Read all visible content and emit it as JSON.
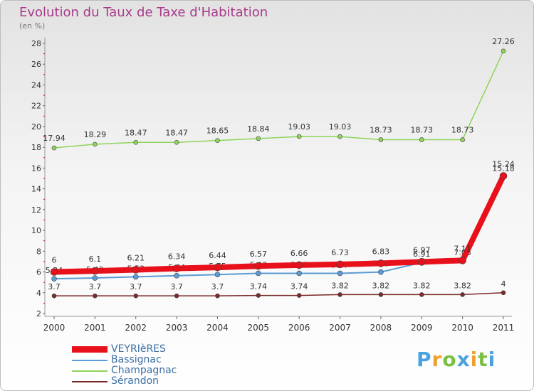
{
  "title": "Evolution du Taux de Taxe d'Habitation",
  "subtitle": "(en %)",
  "brand": {
    "letters": [
      "P",
      "r",
      "o",
      "x",
      "i",
      "t",
      "i"
    ],
    "colors": [
      "#4aa3df",
      "#f0a030",
      "#7bc043",
      "#4aa3df",
      "#f0a030",
      "#7bc043",
      "#4aa3df"
    ]
  },
  "chart_data": {
    "type": "line",
    "title": "Evolution du Taux de Taxe d'Habitation",
    "ylabel": "(en %)",
    "ylim": [
      2,
      28
    ],
    "yticks": [
      2,
      4,
      6,
      8,
      10,
      12,
      14,
      16,
      18,
      20,
      22,
      24,
      26,
      28
    ],
    "x": [
      "2000",
      "2001",
      "2002",
      "2003",
      "2004",
      "2005",
      "2006",
      "2007",
      "2008",
      "2009",
      "2010",
      "2011"
    ],
    "grid": false,
    "legend_position": "bottom-left",
    "series": [
      {
        "name": "Sérandon",
        "color": "#7a2a2a",
        "values": [
          3.7,
          3.7,
          3.7,
          3.7,
          3.7,
          3.74,
          3.74,
          3.82,
          3.82,
          3.82,
          3.82,
          4
        ],
        "labels": [
          "3.7",
          "3.7",
          "3.7",
          "3.7",
          "3.7",
          "3.74",
          "3.74",
          "3.82",
          "3.82",
          "3.82",
          "3.82",
          "4"
        ]
      },
      {
        "name": "Bassignac",
        "color": "#5b9bd5",
        "values": [
          5.34,
          5.42,
          5.53,
          5.64,
          5.75,
          5.87,
          5.87,
          5.87,
          5.99,
          6.91,
          7.05,
          15.18
        ],
        "labels": [
          "5.34",
          "5.42",
          "5.53",
          "5.64",
          "5.75",
          "5.87",
          "5.87",
          "5.87",
          "5.99",
          "6.91",
          "7.05",
          "15.18"
        ]
      },
      {
        "name": "Champagnac",
        "color": "#8fd45a",
        "values": [
          17.94,
          18.29,
          18.47,
          18.47,
          18.65,
          18.84,
          19.03,
          19.03,
          18.73,
          18.73,
          18.73,
          27.26
        ],
        "labels": [
          "17.94",
          "18.29",
          "18.47",
          "18.47",
          "18.65",
          "18.84",
          "19.03",
          "19.03",
          "18.73",
          "18.73",
          "18.73",
          "27.26"
        ]
      },
      {
        "name": "VEYRIèRES",
        "color": "#e8101a",
        "values": [
          6,
          6.1,
          6.21,
          6.34,
          6.44,
          6.57,
          6.66,
          6.73,
          6.83,
          6.97,
          7.11,
          15.24
        ],
        "labels": [
          "6",
          "6.1",
          "6.21",
          "6.34",
          "6.44",
          "6.57",
          "6.66",
          "6.73",
          "6.83",
          "6.97",
          "7.11",
          "15.24"
        ]
      }
    ],
    "legend": [
      "VEYRIèRES",
      "Bassignac",
      "Champagnac",
      "Sérandon"
    ]
  }
}
